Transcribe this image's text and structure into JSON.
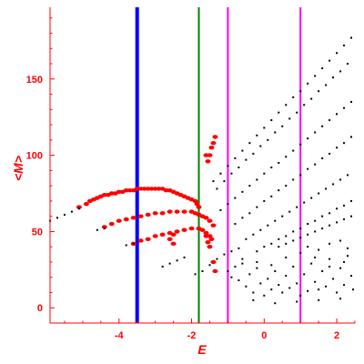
{
  "chart_data": {
    "type": "scatter",
    "title": "",
    "xlabel": "E",
    "ylabel": "<M>",
    "xlim": [
      -5.9,
      2.5
    ],
    "ylim": [
      -10,
      197
    ],
    "x_ticks": [
      -4,
      -2,
      0,
      2
    ],
    "y_ticks": [
      0,
      50,
      100,
      150
    ],
    "grid": false,
    "legend": "none",
    "colors": {
      "axis": "#ff0000",
      "red_series": "#ff0000",
      "black_series": "#000000",
      "blue_line": "#0000ff",
      "green_line": "#007f00",
      "magenta_line": "#ff00ff"
    },
    "vertical_lines": [
      {
        "x": -3.5,
        "color": "#0000ff",
        "width": "thick"
      },
      {
        "x": -1.8,
        "color": "#007f00",
        "width": "normal"
      },
      {
        "x": -1.0,
        "color": "#ff00ff",
        "width": "normal"
      },
      {
        "x": 1.0,
        "color": "#ff00ff",
        "width": "normal"
      }
    ],
    "series": [
      {
        "color": "#ff0000",
        "marker": "red",
        "points": [
          [
            -5.1,
            66
          ],
          [
            -4.9,
            68
          ],
          [
            -4.8,
            70
          ],
          [
            -4.7,
            71
          ],
          [
            -4.6,
            72
          ],
          [
            -4.5,
            73
          ],
          [
            -4.4,
            74
          ],
          [
            -4.3,
            74
          ],
          [
            -4.2,
            75
          ],
          [
            -4.1,
            75
          ],
          [
            -4.0,
            76
          ],
          [
            -3.9,
            76
          ],
          [
            -3.8,
            77
          ],
          [
            -3.7,
            77
          ],
          [
            -3.6,
            77
          ],
          [
            -3.5,
            78
          ],
          [
            -3.4,
            78
          ],
          [
            -3.3,
            78
          ],
          [
            -3.2,
            78
          ],
          [
            -3.1,
            78
          ],
          [
            -3.0,
            78
          ],
          [
            -2.9,
            78
          ],
          [
            -2.8,
            78
          ],
          [
            -2.7,
            77
          ],
          [
            -2.6,
            77
          ],
          [
            -2.5,
            76
          ],
          [
            -2.4,
            75
          ],
          [
            -2.3,
            74
          ],
          [
            -2.2,
            73
          ],
          [
            -2.1,
            72
          ],
          [
            -2.0,
            71
          ],
          [
            -1.9,
            70
          ],
          [
            -1.85,
            68
          ],
          [
            -1.8,
            66
          ],
          [
            -4.4,
            53
          ],
          [
            -4.2,
            55
          ],
          [
            -4.0,
            57
          ],
          [
            -3.8,
            58
          ],
          [
            -3.6,
            59
          ],
          [
            -3.4,
            60
          ],
          [
            -3.2,
            61
          ],
          [
            -3.0,
            62
          ],
          [
            -2.8,
            62
          ],
          [
            -2.6,
            63
          ],
          [
            -2.4,
            63
          ],
          [
            -2.2,
            63
          ],
          [
            -2.0,
            63
          ],
          [
            -1.9,
            62
          ],
          [
            -1.8,
            61
          ],
          [
            -1.7,
            60
          ],
          [
            -1.6,
            59
          ],
          [
            -1.5,
            57
          ],
          [
            -1.4,
            54
          ],
          [
            -3.6,
            42
          ],
          [
            -3.4,
            44
          ],
          [
            -3.2,
            45
          ],
          [
            -3.0,
            47
          ],
          [
            -2.8,
            48
          ],
          [
            -2.6,
            49
          ],
          [
            -2.4,
            50
          ],
          [
            -2.2,
            51
          ],
          [
            -2.0,
            52
          ],
          [
            -1.8,
            52
          ],
          [
            -1.7,
            51
          ],
          [
            -1.6,
            49
          ],
          [
            -1.5,
            47
          ],
          [
            -1.45,
            45
          ],
          [
            -2.5,
            48
          ],
          [
            -2.5,
            42
          ],
          [
            -2.6,
            45
          ],
          [
            -1.6,
            47
          ],
          [
            -1.55,
            43
          ],
          [
            -1.5,
            40
          ],
          [
            -1.4,
            30
          ],
          [
            -1.35,
            24
          ],
          [
            -1.55,
            96
          ],
          [
            -1.5,
            100
          ],
          [
            -1.45,
            105
          ],
          [
            -1.4,
            108
          ],
          [
            -1.35,
            112
          ],
          [
            -1.6,
            100
          ]
        ]
      },
      {
        "color": "#000000",
        "marker": "black",
        "points": [
          [
            -5.9,
            57
          ],
          [
            -5.7,
            59
          ],
          [
            -5.5,
            61
          ],
          [
            -5.3,
            63
          ],
          [
            -5.1,
            65
          ],
          [
            -4.6,
            51
          ],
          [
            -4.4,
            52
          ],
          [
            -3.8,
            41
          ],
          [
            -3.6,
            42
          ],
          [
            -2.8,
            27
          ],
          [
            -2.6,
            29
          ],
          [
            -2.4,
            31
          ],
          [
            -2.2,
            33
          ],
          [
            -1.9,
            22
          ],
          [
            -1.7,
            24
          ],
          [
            -1.5,
            28
          ],
          [
            -1.3,
            32
          ],
          [
            -1.1,
            35
          ],
          [
            -0.9,
            37
          ],
          [
            -0.7,
            39
          ],
          [
            -1.4,
            83
          ],
          [
            -1.2,
            88
          ],
          [
            -1.0,
            93
          ],
          [
            -0.8,
            98
          ],
          [
            -0.6,
            103
          ],
          [
            -0.4,
            108
          ],
          [
            -0.2,
            113
          ],
          [
            0.0,
            118
          ],
          [
            0.2,
            123
          ],
          [
            0.4,
            128
          ],
          [
            0.6,
            133
          ],
          [
            0.8,
            138
          ],
          [
            1.0,
            142
          ],
          [
            1.2,
            147
          ],
          [
            1.4,
            152
          ],
          [
            1.6,
            157
          ],
          [
            1.8,
            162
          ],
          [
            2.0,
            167
          ],
          [
            2.2,
            172
          ],
          [
            2.4,
            177
          ],
          [
            -1.3,
            78
          ],
          [
            -1.1,
            83
          ],
          [
            -0.9,
            88
          ],
          [
            -0.7,
            92
          ],
          [
            -0.5,
            97
          ],
          [
            -0.3,
            101
          ],
          [
            -0.1,
            106
          ],
          [
            0.1,
            110
          ],
          [
            0.3,
            115
          ],
          [
            0.5,
            119
          ],
          [
            0.7,
            124
          ],
          [
            0.9,
            128
          ],
          [
            1.1,
            133
          ],
          [
            1.3,
            137
          ],
          [
            1.5,
            142
          ],
          [
            1.7,
            146
          ],
          [
            1.9,
            151
          ],
          [
            2.1,
            155
          ],
          [
            2.3,
            160
          ],
          [
            -1.2,
            64
          ],
          [
            -1.0,
            68
          ],
          [
            -0.8,
            72
          ],
          [
            -0.6,
            76
          ],
          [
            -0.4,
            80
          ],
          [
            -0.2,
            84
          ],
          [
            0.0,
            88
          ],
          [
            0.2,
            92
          ],
          [
            0.4,
            95
          ],
          [
            0.6,
            99
          ],
          [
            0.8,
            103
          ],
          [
            1.0,
            107
          ],
          [
            1.2,
            111
          ],
          [
            1.4,
            115
          ],
          [
            1.6,
            119
          ],
          [
            1.8,
            123
          ],
          [
            2.0,
            127
          ],
          [
            2.2,
            131
          ],
          [
            2.4,
            135
          ],
          [
            -0.8,
            55
          ],
          [
            -0.6,
            59
          ],
          [
            -0.4,
            62
          ],
          [
            -0.2,
            66
          ],
          [
            0.0,
            70
          ],
          [
            0.2,
            73
          ],
          [
            0.4,
            77
          ],
          [
            0.6,
            80
          ],
          [
            0.8,
            84
          ],
          [
            1.0,
            87
          ],
          [
            1.2,
            91
          ],
          [
            1.4,
            94
          ],
          [
            1.6,
            98
          ],
          [
            1.8,
            101
          ],
          [
            2.0,
            105
          ],
          [
            2.2,
            108
          ],
          [
            2.4,
            112
          ],
          [
            -0.5,
            45
          ],
          [
            -0.3,
            48
          ],
          [
            -0.1,
            51
          ],
          [
            0.1,
            54
          ],
          [
            0.3,
            57
          ],
          [
            0.5,
            60
          ],
          [
            0.7,
            63
          ],
          [
            0.9,
            66
          ],
          [
            1.1,
            69
          ],
          [
            1.3,
            72
          ],
          [
            1.5,
            75
          ],
          [
            1.7,
            78
          ],
          [
            1.9,
            81
          ],
          [
            2.1,
            84
          ],
          [
            2.3,
            87
          ],
          [
            -0.2,
            37
          ],
          [
            0.0,
            40
          ],
          [
            0.2,
            42
          ],
          [
            0.4,
            45
          ],
          [
            0.6,
            47
          ],
          [
            0.8,
            50
          ],
          [
            1.0,
            52
          ],
          [
            1.2,
            55
          ],
          [
            1.4,
            57
          ],
          [
            1.6,
            60
          ],
          [
            1.8,
            62
          ],
          [
            2.0,
            65
          ],
          [
            2.2,
            67
          ],
          [
            2.4,
            70
          ],
          [
            0.4,
            40
          ],
          [
            0.6,
            42
          ],
          [
            0.8,
            44
          ],
          [
            1.0,
            46
          ],
          [
            1.2,
            48
          ],
          [
            1.4,
            50
          ],
          [
            1.6,
            52
          ],
          [
            1.8,
            54
          ],
          [
            2.0,
            56
          ],
          [
            2.2,
            58
          ],
          [
            2.4,
            60
          ],
          [
            -1.0,
            24
          ],
          [
            -0.9,
            20
          ],
          [
            -0.8,
            27
          ],
          [
            -0.7,
            18
          ],
          [
            -0.6,
            29
          ],
          [
            -0.5,
            14
          ],
          [
            -0.4,
            22
          ],
          [
            -0.3,
            10
          ],
          [
            -0.2,
            26
          ],
          [
            -0.1,
            16
          ],
          [
            0.0,
            8
          ],
          [
            0.1,
            19
          ],
          [
            0.2,
            12
          ],
          [
            0.3,
            24
          ],
          [
            0.4,
            15
          ],
          [
            0.5,
            10
          ],
          [
            0.6,
            21
          ],
          [
            0.7,
            13
          ],
          [
            0.8,
            27
          ],
          [
            0.9,
            16
          ],
          [
            1.0,
            8
          ],
          [
            1.1,
            22
          ],
          [
            1.2,
            11
          ],
          [
            1.3,
            29
          ],
          [
            1.4,
            17
          ],
          [
            1.5,
            12
          ],
          [
            1.6,
            24
          ],
          [
            1.7,
            14
          ],
          [
            1.8,
            32
          ],
          [
            1.9,
            19
          ],
          [
            2.0,
            10
          ],
          [
            2.1,
            26
          ],
          [
            2.2,
            15
          ],
          [
            2.3,
            34
          ],
          [
            2.4,
            21
          ],
          [
            2.45,
            12
          ],
          [
            1.2,
            40
          ],
          [
            1.5,
            38
          ],
          [
            1.8,
            42
          ],
          [
            2.1,
            44
          ],
          [
            2.3,
            39
          ],
          [
            -0.6,
            32
          ],
          [
            -0.2,
            30
          ],
          [
            0.2,
            28
          ],
          [
            0.6,
            33
          ],
          [
            1.0,
            36
          ],
          [
            1.4,
            33
          ],
          [
            1.8,
            27
          ],
          [
            2.2,
            30
          ],
          [
            0.3,
            3
          ],
          [
            0.9,
            4
          ],
          [
            1.5,
            5
          ],
          [
            2.1,
            6
          ],
          [
            -0.3,
            5
          ]
        ]
      }
    ]
  }
}
